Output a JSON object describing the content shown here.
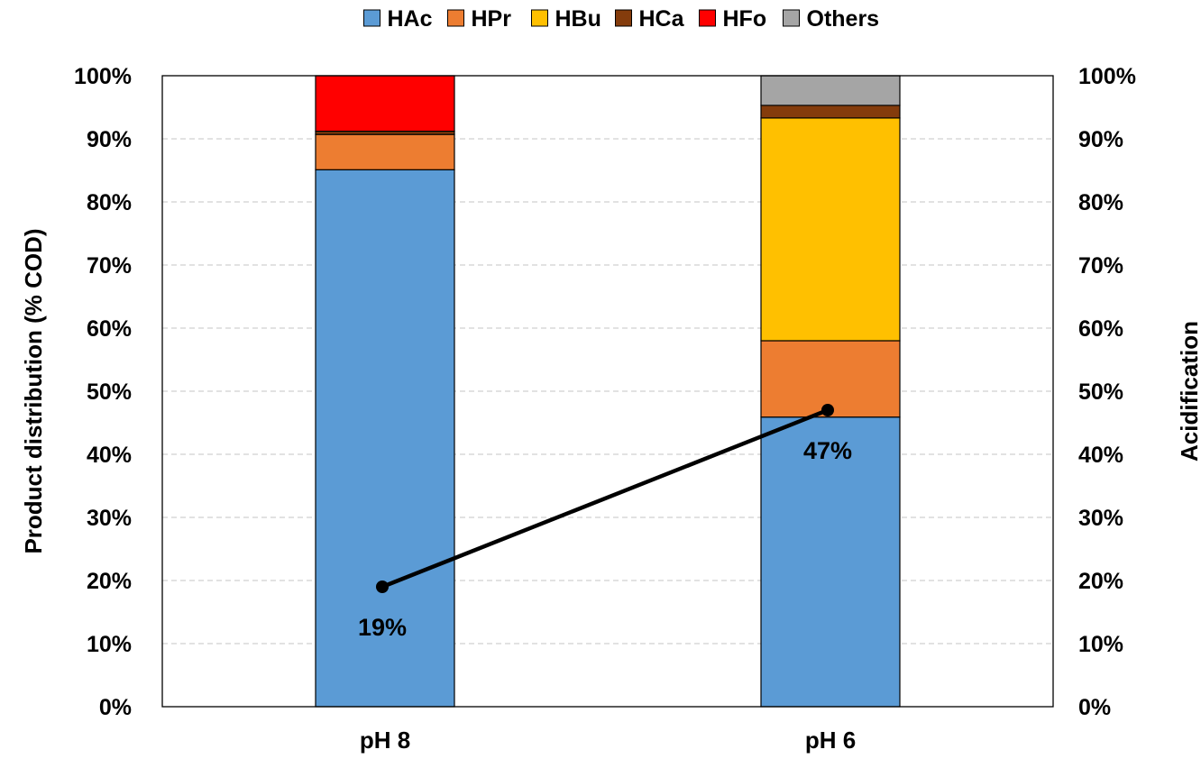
{
  "chart_data": {
    "type": "bar",
    "stacked": true,
    "categories": [
      "pH 8",
      "pH 6"
    ],
    "series": [
      {
        "name": "HAc",
        "color": "#5B9BD5",
        "values": [
          85.1,
          45.9
        ]
      },
      {
        "name": "HPr",
        "color": "#ED7D31",
        "values": [
          5.6,
          12.1
        ]
      },
      {
        "name": "HBu",
        "color": "#FFC000",
        "values": [
          0.0,
          35.3
        ]
      },
      {
        "name": "HCa",
        "color": "#843C0C",
        "values": [
          0.5,
          2.0
        ]
      },
      {
        "name": "HFo",
        "color": "#FF0000",
        "values": [
          8.8,
          0.0
        ]
      },
      {
        "name": "Others",
        "color": "#A5A5A5",
        "values": [
          0.0,
          4.7
        ]
      }
    ],
    "line_series": {
      "axis": "secondary",
      "color": "#000000",
      "values": [
        19,
        47
      ],
      "labels": [
        "19%",
        "47%"
      ]
    },
    "ylabel": "Product distribution (% COD)",
    "y2label": "Acidification",
    "ylim": [
      0,
      100
    ],
    "y2lim": [
      0,
      100
    ],
    "yticks": [
      "0%",
      "10%",
      "20%",
      "30%",
      "40%",
      "50%",
      "60%",
      "70%",
      "80%",
      "90%",
      "100%"
    ],
    "y2ticks": [
      "0%",
      "10%",
      "20%",
      "30%",
      "40%",
      "50%",
      "60%",
      "70%",
      "80%",
      "90%",
      "100%"
    ],
    "grid": "horizontal dashed",
    "legend_position": "top"
  }
}
